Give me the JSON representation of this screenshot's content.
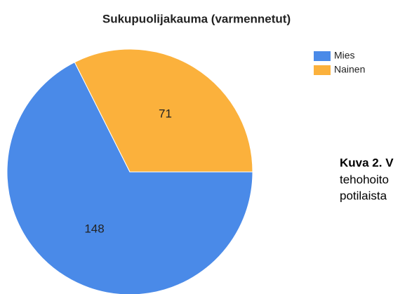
{
  "chart_data": {
    "type": "pie",
    "title": "Sukupuolijakauma (varmennetut)",
    "categories": [
      "Mies",
      "Nainen"
    ],
    "values": [
      148,
      71
    ],
    "colors": [
      "#4a8ae8",
      "#fbb13c"
    ],
    "legend": "right"
  },
  "caption": [
    "Kuva 2. V",
    "tehohoito",
    "potilaista"
  ]
}
